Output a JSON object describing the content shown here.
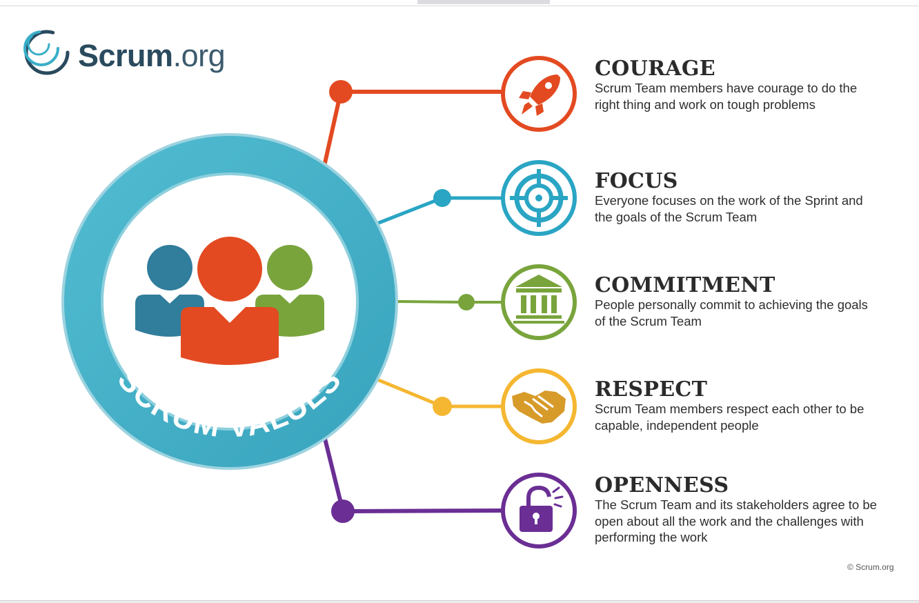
{
  "logo": {
    "brand": "Scrum",
    "tld": ".org"
  },
  "center": {
    "label": "SCRUM VALUES"
  },
  "values": [
    {
      "title": "COURAGE",
      "description": "Scrum Team members have courage to do the right thing and work on tough problems",
      "color": "#e34a21",
      "icon": "rocket-icon"
    },
    {
      "title": "FOCUS",
      "description": "Everyone focuses on the work of the Sprint and the goals of the Scrum Team",
      "color": "#2aa5c4",
      "icon": "target-icon"
    },
    {
      "title": "COMMITMENT",
      "description": "People personally commit to achieving the goals of the Scrum Team",
      "color": "#79a43c",
      "icon": "building-icon"
    },
    {
      "title": "RESPECT",
      "description": "Scrum Team members respect each other to be capable, independent people",
      "color": "#f5b731",
      "icon": "handshake-icon"
    },
    {
      "title": "OPENNESS",
      "description": "The Scrum Team and its stakeholders agree to be open about all the work and the challenges with performing the work",
      "color": "#6a2e94",
      "icon": "unlock-icon"
    }
  ],
  "footer": {
    "copyright": "© Scrum.org"
  }
}
